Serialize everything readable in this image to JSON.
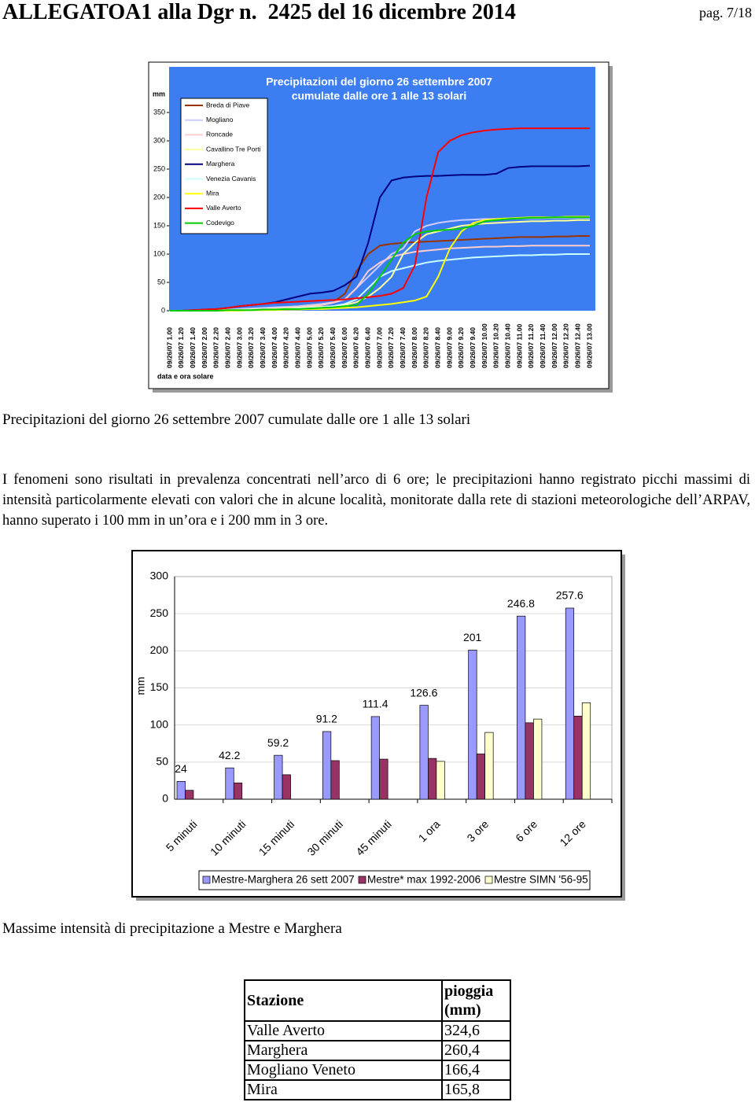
{
  "header": {
    "title": "ALLEGATOA1 alla Dgr n.  2425 del 16 dicembre 2014",
    "page": "pag. 7/18"
  },
  "chart_data": [
    {
      "type": "line",
      "title": "Precipitazioni del giorno 26 settembre 2007",
      "subtitle": "cumulate dalle ore 1 alle 13 solari",
      "y_label": "mm",
      "x_label": "data e ora solare",
      "categories": [
        "09/26/07 1.00",
        "09/26/07 1.20",
        "09/26/07 1.40",
        "09/26/07 2.00",
        "09/26/07 2.20",
        "09/26/07 2.40",
        "09/26/07 3.00",
        "09/26/07 3.20",
        "09/26/07 3.40",
        "09/26/07 4.00",
        "09/26/07 4.20",
        "09/26/07 4.40",
        "09/26/07 5.00",
        "09/26/07 5.20",
        "09/26/07 5.40",
        "09/26/07 6.00",
        "09/26/07 6.20",
        "09/26/07 6.40",
        "09/26/07 7.00",
        "09/26/07 7.20",
        "09/26/07 7.40",
        "09/26/07 8.00",
        "09/26/07 8.20",
        "09/26/07 8.40",
        "09/26/07 9.00",
        "09/26/07 9.20",
        "09/26/07 9.40",
        "09/26/07 10.00",
        "09/26/07 10.20",
        "09/26/07 10.40",
        "09/26/07 11.00",
        "09/26/07 11.20",
        "09/26/07 11.40",
        "09/26/07 12.00",
        "09/26/07 12.20",
        "09/26/07 12.40",
        "09/26/07 13.00"
      ],
      "ylim": [
        0,
        350
      ],
      "yticks": [
        0,
        50,
        100,
        150,
        200,
        250,
        300,
        350
      ],
      "background": "#3c7ef2",
      "legend": "upper-left",
      "series": [
        {
          "name": "Breda di Piave",
          "color": "#993300",
          "values": [
            0,
            0,
            0,
            1,
            1,
            2,
            2,
            3,
            4,
            5,
            6,
            8,
            10,
            12,
            15,
            30,
            70,
            100,
            115,
            118,
            120,
            121,
            122,
            123,
            124,
            125,
            126,
            127,
            128,
            129,
            130,
            130,
            130,
            131,
            131,
            132,
            132
          ]
        },
        {
          "name": "Mogliano",
          "color": "#ccccff",
          "values": [
            0,
            0,
            0,
            1,
            1,
            2,
            3,
            4,
            5,
            6,
            7,
            8,
            10,
            12,
            15,
            20,
            40,
            60,
            80,
            100,
            110,
            140,
            150,
            155,
            158,
            160,
            161,
            162,
            162,
            163,
            163,
            163,
            163,
            164,
            164,
            164,
            164
          ]
        },
        {
          "name": "Roncade",
          "color": "#ffcccc",
          "values": [
            0,
            0,
            0,
            0,
            1,
            1,
            2,
            2,
            3,
            4,
            5,
            6,
            8,
            10,
            14,
            20,
            40,
            70,
            85,
            95,
            100,
            104,
            106,
            108,
            110,
            111,
            112,
            113,
            113,
            114,
            114,
            115,
            115,
            115,
            115,
            115,
            115
          ]
        },
        {
          "name": "Cavallino Tre Porti",
          "color": "#ffff99",
          "values": [
            0,
            0,
            0,
            0,
            0,
            1,
            1,
            2,
            2,
            3,
            4,
            5,
            6,
            7,
            8,
            10,
            15,
            25,
            40,
            60,
            100,
            120,
            135,
            140,
            145,
            150,
            152,
            154,
            155,
            156,
            157,
            158,
            158,
            159,
            159,
            160,
            160
          ]
        },
        {
          "name": "Marghera",
          "color": "#000080",
          "values": [
            0,
            0,
            1,
            2,
            3,
            5,
            8,
            10,
            12,
            15,
            20,
            25,
            30,
            32,
            35,
            45,
            60,
            120,
            200,
            230,
            235,
            237,
            238,
            238,
            239,
            240,
            240,
            240,
            242,
            252,
            254,
            255,
            255,
            255,
            255,
            255,
            256
          ]
        },
        {
          "name": "Venezia Cavanis",
          "color": "#ccffff",
          "values": [
            0,
            0,
            0,
            0,
            0,
            0,
            1,
            1,
            1,
            2,
            3,
            4,
            5,
            6,
            8,
            12,
            20,
            40,
            60,
            70,
            75,
            80,
            85,
            88,
            90,
            92,
            94,
            95,
            96,
            97,
            98,
            98,
            99,
            99,
            100,
            100,
            100
          ]
        },
        {
          "name": "Mira",
          "color": "#ffff00",
          "values": [
            0,
            0,
            0,
            0,
            0,
            0,
            0,
            1,
            1,
            1,
            2,
            2,
            3,
            3,
            4,
            5,
            6,
            8,
            10,
            12,
            15,
            18,
            25,
            60,
            110,
            140,
            155,
            160,
            162,
            163,
            164,
            165,
            165,
            165,
            166,
            166,
            166
          ]
        },
        {
          "name": "Valle Averto",
          "color": "#ff0000",
          "values": [
            0,
            0,
            1,
            2,
            3,
            5,
            8,
            10,
            12,
            14,
            15,
            16,
            17,
            18,
            19,
            20,
            22,
            24,
            26,
            30,
            40,
            80,
            200,
            280,
            300,
            310,
            315,
            318,
            320,
            321,
            322,
            322,
            322,
            322,
            322,
            322,
            322
          ]
        },
        {
          "name": "Codevigo",
          "color": "#00cc00",
          "values": [
            0,
            0,
            0,
            0,
            0,
            1,
            1,
            1,
            2,
            2,
            3,
            3,
            4,
            5,
            6,
            8,
            10,
            30,
            60,
            90,
            120,
            135,
            140,
            142,
            143,
            145,
            150,
            158,
            160,
            162,
            163,
            164,
            164,
            165,
            165,
            165,
            165
          ]
        }
      ]
    },
    {
      "type": "bar",
      "y_label": "mm",
      "categories": [
        "5 minuti",
        "10 minuti",
        "15 minuti",
        "30 minuti",
        "45 minuti",
        "1 ora",
        "3 ore",
        "6 ore",
        "12 ore"
      ],
      "ylim": [
        0,
        300
      ],
      "yticks": [
        0,
        50,
        100,
        150,
        200,
        250,
        300
      ],
      "grid": true,
      "legend": "bottom",
      "series": [
        {
          "name": "Mestre-Marghera 26 sett 2007",
          "color": "#9999ff",
          "show_values": true,
          "values": [
            24,
            42.2,
            59.2,
            91.2,
            111.4,
            126.6,
            201,
            246.8,
            257.6
          ]
        },
        {
          "name": "Mestre* max 1992-2006",
          "color": "#993366",
          "show_values": false,
          "values": [
            12,
            22,
            33,
            52,
            54,
            55,
            61,
            103,
            112
          ]
        },
        {
          "name": "Mestre SIMN '56-95",
          "color": "#ffffcc",
          "show_values": false,
          "values": [
            null,
            null,
            null,
            null,
            null,
            51,
            90,
            108,
            130
          ]
        }
      ]
    }
  ],
  "captions": [
    "Precipitazioni del giorno 26 settembre 2007 cumulate dalle ore 1 alle 13 solari",
    "Massime intensità di precipitazione a Mestre e Marghera"
  ],
  "paragraph": "I fenomeni sono risultati in prevalenza concentrati nell’arco di 6 ore; le precipitazioni hanno registrato picchi massimi di intensità particolarmente elevati con valori che in alcune località, monitorate dalla rete di stazioni meteorologiche dell’ARPAV, hanno superato i 100 mm in un’ora e i 200 mm in 3 ore.",
  "table": {
    "header": [
      "Stazione",
      "pioggia (mm)"
    ],
    "rows": [
      [
        "Valle Averto",
        "324,6"
      ],
      [
        "Marghera",
        "260,4"
      ],
      [
        "Mogliano Veneto",
        "166,4"
      ],
      [
        "Mira",
        "165,8"
      ]
    ]
  }
}
